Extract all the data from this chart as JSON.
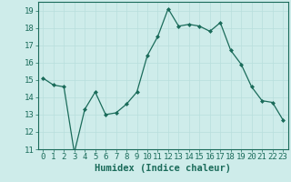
{
  "x": [
    0,
    1,
    2,
    3,
    4,
    5,
    6,
    7,
    8,
    9,
    10,
    11,
    12,
    13,
    14,
    15,
    16,
    17,
    18,
    19,
    20,
    21,
    22,
    23
  ],
  "y": [
    15.1,
    14.7,
    14.6,
    10.8,
    13.3,
    14.3,
    13.0,
    13.1,
    13.6,
    14.3,
    16.4,
    17.5,
    19.1,
    18.1,
    18.2,
    18.1,
    17.8,
    18.3,
    16.7,
    15.9,
    14.6,
    13.8,
    13.7,
    12.7
  ],
  "line_color": "#1a6b5a",
  "marker": "D",
  "marker_size": 2.0,
  "bg_color": "#ceecea",
  "grid_color": "#b8dedd",
  "xlabel": "Humidex (Indice chaleur)",
  "ylim": [
    11,
    19.5
  ],
  "yticks": [
    11,
    12,
    13,
    14,
    15,
    16,
    17,
    18,
    19
  ],
  "xticks": [
    0,
    1,
    2,
    3,
    4,
    5,
    6,
    7,
    8,
    9,
    10,
    11,
    12,
    13,
    14,
    15,
    16,
    17,
    18,
    19,
    20,
    21,
    22,
    23
  ],
  "xlabel_fontsize": 7.5,
  "tick_fontsize": 6.5,
  "axis_color": "#1a6b5a",
  "spine_color": "#1a6b5a",
  "linewidth": 0.9
}
